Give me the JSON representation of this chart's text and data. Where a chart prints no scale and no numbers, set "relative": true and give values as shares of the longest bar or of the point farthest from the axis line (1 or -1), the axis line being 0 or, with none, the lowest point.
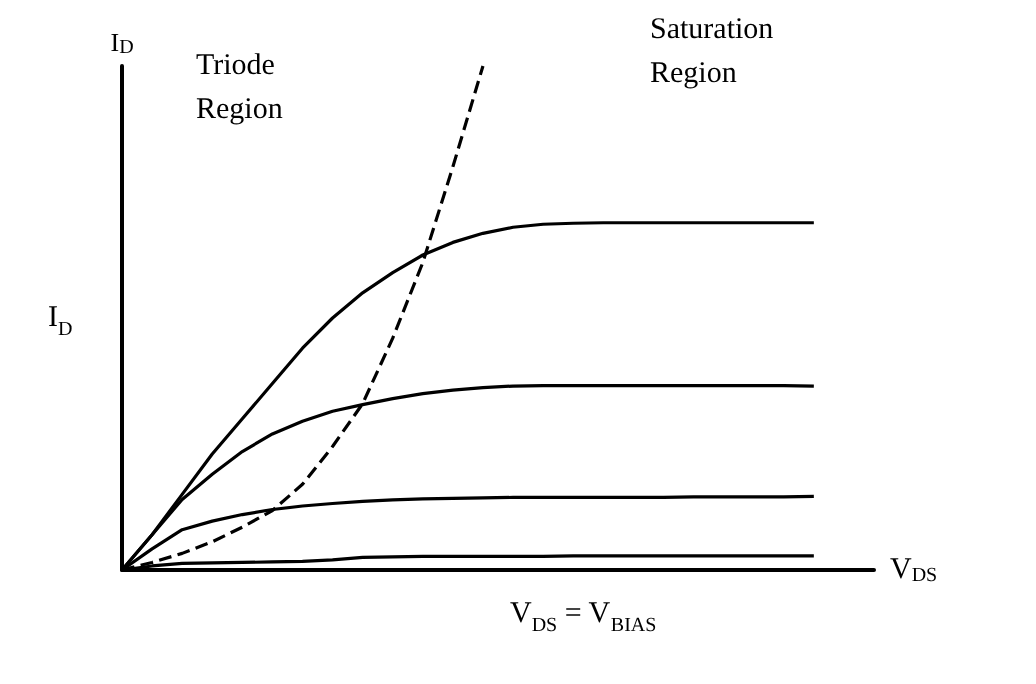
{
  "chart_data": {
    "type": "line",
    "relative": true,
    "xlabel": "V$_{DS}$",
    "ylabel": "I$_{D}$",
    "grid": false,
    "marker": "none",
    "line_style": "solid",
    "annotations": [
      "Triode\nRegion",
      "Saturation\nRegion",
      "I$_{D}$",
      "V$_{DS}$ = V$_{BIAS}$"
    ],
    "categories": [
      null,
      null,
      null,
      null,
      null,
      null,
      null,
      null,
      null,
      null,
      null,
      null,
      null,
      null,
      null,
      null,
      null,
      null,
      null,
      null,
      null,
      null,
      null,
      null,
      null,
      null
    ],
    "series": [
      {
        "color": "#000000",
        "values": [
          0,
          0.07,
          0.15,
          0.23,
          0.3,
          0.37,
          0.44,
          0.5,
          0.55,
          0.59,
          0.625,
          0.65,
          0.668,
          0.68,
          0.686,
          0.688,
          0.689,
          0.689,
          0.689,
          0.689,
          0.689,
          0.689,
          0.689,
          0.689,
          null,
          null
        ]
      },
      {
        "color": "#000000",
        "values": [
          0,
          0.07,
          0.14,
          0.19,
          0.235,
          0.27,
          0.295,
          0.315,
          0.328,
          0.34,
          0.35,
          0.357,
          0.362,
          0.365,
          0.366,
          0.366,
          0.366,
          0.366,
          0.366,
          0.366,
          0.366,
          0.366,
          0.366,
          0.365,
          null,
          null
        ]
      },
      {
        "color": "#000000",
        "values": [
          0,
          0.042,
          0.08,
          0.097,
          0.11,
          0.12,
          0.127,
          0.132,
          0.136,
          0.139,
          0.141,
          0.142,
          0.143,
          0.144,
          0.144,
          0.144,
          0.144,
          0.144,
          0.144,
          0.145,
          0.145,
          0.145,
          0.145,
          0.146,
          null,
          null
        ]
      },
      {
        "color": "#000000",
        "values": [
          0,
          0.008,
          0.013,
          0.014,
          0.015,
          0.016,
          0.017,
          0.02,
          0.025,
          0.026,
          0.027,
          0.027,
          0.027,
          0.027,
          0.027,
          0.028,
          0.028,
          0.028,
          0.028,
          0.028,
          0.028,
          0.028,
          0.028,
          0.028,
          null,
          null
        ]
      },
      {
        "color": "#000000",
        "line_style": "dashed",
        "values": [
          0,
          0.015,
          0.033,
          0.056,
          0.085,
          0.118,
          0.17,
          0.245,
          0.33,
          0.46,
          0.61,
          0.8,
          1,
          null,
          null,
          null,
          null,
          null,
          null,
          null,
          null,
          null,
          null,
          null,
          null,
          null
        ]
      }
    ]
  }
}
